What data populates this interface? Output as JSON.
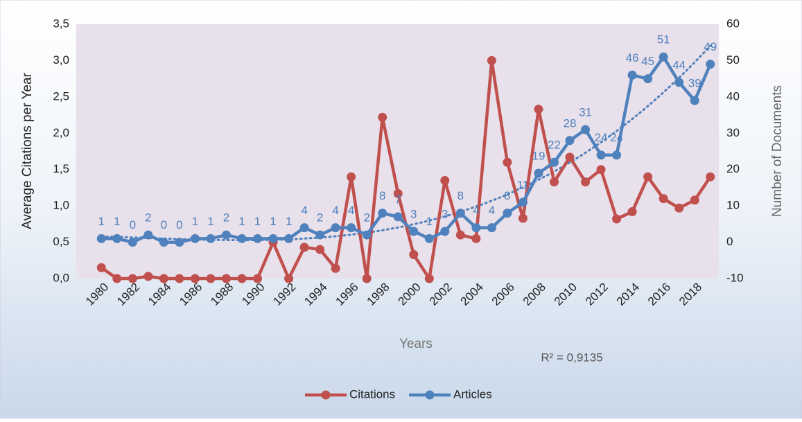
{
  "chart_data": {
    "type": "line",
    "x": [
      1980,
      1981,
      1982,
      1983,
      1984,
      1985,
      1986,
      1987,
      1988,
      1989,
      1990,
      1991,
      1992,
      1993,
      1994,
      1995,
      1996,
      1997,
      1998,
      1999,
      2000,
      2001,
      2002,
      2003,
      2004,
      2005,
      2006,
      2007,
      2008,
      2009,
      2010,
      2011,
      2012,
      2013,
      2014,
      2015,
      2016,
      2017,
      2018,
      2019
    ],
    "xlim": [
      1979.5,
      2019.5
    ],
    "xticks": [
      1980,
      1982,
      1984,
      1986,
      1988,
      1990,
      1992,
      1994,
      1996,
      1998,
      2000,
      2002,
      2004,
      2006,
      2008,
      2010,
      2012,
      2014,
      2016,
      2018
    ],
    "x_label": "Years",
    "y_label": "Average Citations per Year",
    "y2_label": "Number of Documents",
    "ylim": [
      0,
      3.5
    ],
    "yticks": [
      {
        "value": 0,
        "label": "0,0"
      },
      {
        "value": 0.5,
        "label": "0,5"
      },
      {
        "value": 1,
        "label": "1,0"
      },
      {
        "value": 1.5,
        "label": "1,5"
      },
      {
        "value": 2,
        "label": "2,0"
      },
      {
        "value": 2.5,
        "label": "2,5"
      },
      {
        "value": 3,
        "label": "3,0"
      },
      {
        "value": 3.5,
        "label": "3,5"
      }
    ],
    "y2lim": [
      -10,
      60
    ],
    "y2ticks": [
      -10,
      0,
      10,
      20,
      30,
      40,
      50,
      60
    ],
    "series": [
      {
        "name": "Citations",
        "color": "#c0504d",
        "values": [
          0.15,
          0,
          0,
          0.03,
          0,
          0,
          0,
          0,
          0,
          0,
          0,
          0.5,
          0,
          0.43,
          0.4,
          0.14,
          1.4,
          0,
          2.22,
          1.17,
          0.33,
          0,
          1.35,
          0.6,
          0.55,
          3.0,
          1.6,
          0.83,
          2.33,
          1.33,
          1.67,
          1.33,
          1.5,
          0.82,
          0.92,
          1.4,
          1.1,
          0.97,
          1.08,
          1.4
        ]
      },
      {
        "name": "Articles",
        "color": "#4f81bd",
        "axis": "y2",
        "data_labels": true,
        "values": [
          1,
          1,
          0,
          2,
          0,
          0,
          1,
          1,
          2,
          1,
          1,
          1,
          1,
          4,
          2,
          4,
          4,
          2,
          8,
          7,
          3,
          1,
          3,
          8,
          4,
          4,
          8,
          11,
          19,
          22,
          28,
          31,
          24,
          24,
          46,
          45,
          51,
          44,
          39,
          49
        ]
      }
    ],
    "annotations": [
      "R² = 0,9135"
    ],
    "legend": "bottom"
  }
}
